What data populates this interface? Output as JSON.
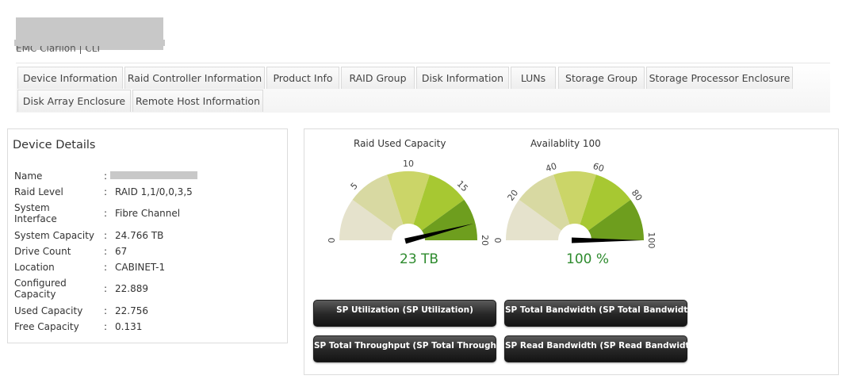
{
  "header": {
    "subtitle": "EMC Clariion | CLI"
  },
  "tabs": [
    "Device Information",
    "Raid Controller Information",
    "Product Info",
    "RAID Group",
    "Disk Information",
    "LUNs",
    "Storage Group",
    "Storage Processor Enclosure",
    "Disk Array Enclosure",
    "Remote Host Information"
  ],
  "details": {
    "title": "Device Details",
    "colon": ":",
    "rows": [
      {
        "label": "Name",
        "value": ""
      },
      {
        "label": "Raid Level",
        "value": "RAID 1,1/0,0,3,5"
      },
      {
        "label": "System Interface",
        "value": "Fibre Channel"
      },
      {
        "label": "System Capacity",
        "value": "24.766 TB"
      },
      {
        "label": "Drive Count",
        "value": "67"
      },
      {
        "label": "Location",
        "value": "CABINET-1"
      },
      {
        "label": "Configured Capacity",
        "value": "22.889"
      },
      {
        "label": "Used Capacity",
        "value": "22.756"
      },
      {
        "label": "Free Capacity",
        "value": "0.131"
      }
    ]
  },
  "gauges": [
    {
      "title": "Raid Used Capacity",
      "ticks": [
        "0",
        "5",
        "10",
        "15",
        "20"
      ],
      "max": 25,
      "value": 23,
      "value_label": "23 TB"
    },
    {
      "title": "Availablity 100",
      "ticks": [
        "0",
        "20",
        "40",
        "60",
        "80",
        "100"
      ],
      "max": 100,
      "value": 100,
      "value_label": "100 %"
    }
  ],
  "gauge_colors": [
    "#e5e2cc",
    "#d8d9a2",
    "#cbd568",
    "#a7c832",
    "#6e9e1e"
  ],
  "buttons": [
    "SP Utilization (SP Utilization)",
    "SP Total Bandwidth (SP Total Bandwidth)",
    "SP Total Throughput (SP Total Throughput)",
    "SP Read Bandwidth (SP Read Bandwidth)"
  ]
}
